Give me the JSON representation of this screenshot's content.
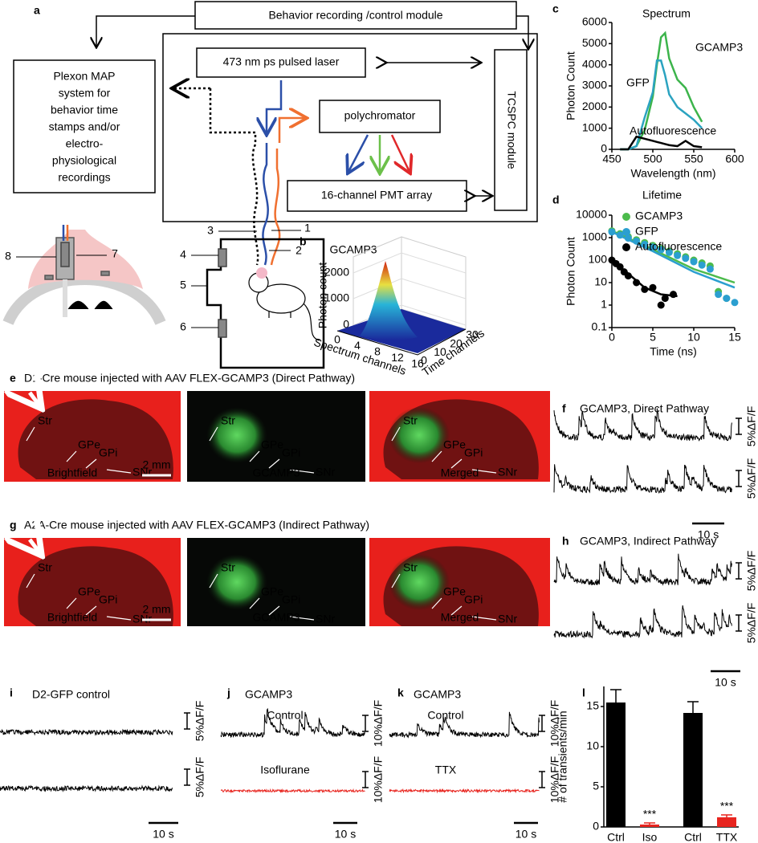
{
  "panel_labels": [
    "a",
    "b",
    "c",
    "d",
    "e",
    "f",
    "g",
    "h",
    "i",
    "j",
    "k",
    "l"
  ],
  "diagram": {
    "behavior_module": "Behavior recording /control module",
    "plexon": [
      "Plexon MAP",
      "system for",
      "behavior time",
      "stamps and/or",
      "electro-",
      "physiological",
      "recordings"
    ],
    "laser": "473 nm ps pulsed laser",
    "polychromator": "polychromator",
    "pmt": "16-channel PMT array",
    "tcspc": "TCSPC module",
    "callouts": [
      "1",
      "2",
      "3",
      "4",
      "5",
      "6",
      "7",
      "8"
    ]
  },
  "panel_b": {
    "title": "GCAMP3",
    "ylabel": "Photon count",
    "yticks": [
      0,
      1000,
      2000
    ],
    "xlabel": "Spectrum channels",
    "xticks": [
      0,
      4,
      8,
      12,
      16
    ],
    "zlabel": "Time channels",
    "zticks": [
      0,
      10,
      20,
      30
    ]
  },
  "chart_data": [
    {
      "type": "line",
      "title": "Spectrum",
      "xlabel": "Wavelength (nm)",
      "ylabel": "Photon Count",
      "x": [
        460,
        470,
        480,
        490,
        500,
        505,
        510,
        515,
        520,
        530,
        540,
        550,
        560
      ],
      "series": [
        {
          "name": "GCAMP3",
          "color": "#3cb44b",
          "values": [
            0,
            0,
            150,
            900,
            2500,
            4000,
            5300,
            5500,
            4300,
            3300,
            2900,
            2000,
            1300
          ]
        },
        {
          "name": "GFP",
          "color": "#2ba3c0",
          "values": [
            0,
            0,
            150,
            1500,
            2700,
            4200,
            4200,
            3500,
            2600,
            2000,
            1700,
            1400,
            1000
          ]
        },
        {
          "name": "Autofluorescence",
          "color": "#000000",
          "values": [
            0,
            0,
            600,
            500,
            400,
            350,
            300,
            250,
            200,
            150,
            400,
            150,
            100
          ]
        }
      ],
      "xlim": [
        450,
        600
      ],
      "ylim": [
        0,
        6000
      ],
      "xticks": [
        450,
        500,
        550,
        600
      ],
      "yticks": [
        0,
        1000,
        2000,
        3000,
        4000,
        5000,
        6000
      ]
    },
    {
      "type": "scatter",
      "title": "Lifetime",
      "xlabel": "Time (ns)",
      "ylabel": "Photon Count",
      "log_y": true,
      "legend": "upper right",
      "series": [
        {
          "name": "GCAMP3",
          "color": "#4cbb4c",
          "x": [
            0,
            1,
            2,
            3,
            4,
            5,
            6,
            7,
            8,
            9,
            10,
            11,
            12,
            13,
            14
          ],
          "values": [
            2000,
            1500,
            1100,
            800,
            600,
            450,
            330,
            250,
            190,
            140,
            100,
            75,
            55,
            4,
            2
          ],
          "fit_x": [
            0,
            5,
            10,
            15
          ],
          "fit_values": [
            2000,
            300,
            40,
            10
          ]
        },
        {
          "name": "GFP",
          "color": "#2b9fd0",
          "x": [
            0,
            1,
            2,
            3,
            4,
            5,
            6,
            7,
            8,
            9,
            10,
            11,
            12,
            13,
            14,
            15
          ],
          "values": [
            1800,
            1300,
            950,
            700,
            500,
            380,
            290,
            220,
            160,
            120,
            85,
            60,
            40,
            3,
            2,
            1.3
          ],
          "fit_x": [
            0,
            5,
            10,
            15
          ],
          "fit_values": [
            1800,
            250,
            30,
            6
          ]
        },
        {
          "name": "Autofluorescence",
          "color": "#000000",
          "x": [
            0,
            0.5,
            1,
            1.5,
            2,
            3,
            4,
            5,
            6,
            6.5,
            7.5
          ],
          "values": [
            100,
            70,
            50,
            30,
            20,
            10,
            5,
            6,
            1,
            2,
            3
          ],
          "fit_x": [
            0,
            2,
            4,
            6,
            8
          ],
          "fit_values": [
            100,
            25,
            6,
            3,
            2.5
          ]
        }
      ],
      "xlim": [
        0,
        15
      ],
      "ylim": [
        0.1,
        10000
      ],
      "xticks": [
        0,
        5,
        10,
        15
      ],
      "yticks": [
        0.1,
        1,
        10,
        100,
        1000,
        10000
      ]
    },
    {
      "type": "bar",
      "ylabel": "# of transients/min",
      "categories": [
        "Ctrl",
        "Iso",
        "Ctrl",
        "TTX"
      ],
      "values": [
        15.5,
        0.3,
        14.2,
        1.2
      ],
      "errors": [
        1.6,
        0.2,
        1.4,
        0.3
      ],
      "colors": [
        "#000000",
        "#e8251f",
        "#000000",
        "#e8251f"
      ],
      "significance": [
        null,
        "***",
        null,
        "***"
      ],
      "ylim": [
        0,
        17.5
      ],
      "yticks": [
        0,
        5,
        10,
        15
      ]
    }
  ],
  "histology": [
    {
      "title": "D1-Cre mouse injected with AAV FLEX-GCAMP3 (Direct Pathway)",
      "images": [
        "Brightfield",
        "GCAMP3",
        "Merged"
      ],
      "regions": [
        "Str",
        "GPe",
        "GPi",
        "SNr"
      ],
      "scale_bar": "2 mm"
    },
    {
      "title": "A2A-Cre mouse injected with AAV FLEX-GCAMP3 (Indirect Pathway)",
      "images": [
        "Brightfield",
        "GCAMP3",
        "Merged"
      ],
      "regions": [
        "Str",
        "GPe",
        "GPi",
        "SNr"
      ],
      "scale_bar": "2 mm"
    }
  ],
  "recordings": [
    {
      "title": "GCAMP3, Direct Pathway",
      "traces": [
        {
          "scale": "5%ΔF/F",
          "color": "#000000"
        },
        {
          "scale": "5%ΔF/F",
          "color": "#000000"
        }
      ],
      "time_bar": "10 s"
    },
    {
      "title": "GCAMP3, Indirect Pathway",
      "traces": [
        {
          "scale": "5%ΔF/F",
          "color": "#000000"
        },
        {
          "scale": "5%ΔF/F",
          "color": "#000000"
        }
      ],
      "time_bar": "10 s"
    },
    {
      "title": "D2-GFP control",
      "traces": [
        {
          "scale": "5%ΔF/F",
          "color": "#000000"
        },
        {
          "scale": "5%ΔF/F",
          "color": "#000000"
        }
      ],
      "time_bar": "10 s"
    },
    {
      "title": "GCAMP3",
      "traces": [
        {
          "label": "Control",
          "scale": "10%ΔF/F",
          "color": "#000000"
        },
        {
          "label": "Isoflurane",
          "scale": "10%ΔF/F",
          "color": "#e8251f"
        }
      ],
      "time_bar": "10 s"
    },
    {
      "title": "GCAMP3",
      "traces": [
        {
          "label": "Control",
          "scale": "10%ΔF/F",
          "color": "#000000"
        },
        {
          "label": "TTX",
          "scale": "10%ΔF/F",
          "color": "#e8251f"
        }
      ],
      "time_bar": "10 s"
    }
  ]
}
